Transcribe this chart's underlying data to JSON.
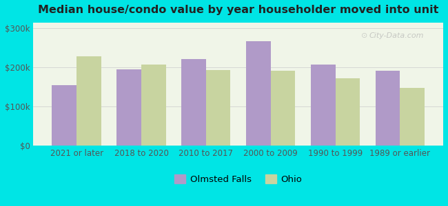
{
  "title": "Median house/condo value by year householder moved into unit",
  "categories": [
    "2021 or later",
    "2018 to 2020",
    "2010 to 2017",
    "2000 to 2009",
    "1990 to 1999",
    "1989 or earlier"
  ],
  "olmsted_falls": [
    155000,
    195000,
    222000,
    268000,
    208000,
    192000
  ],
  "ohio": [
    228000,
    207000,
    193000,
    192000,
    172000,
    148000
  ],
  "olmsted_color": "#b09ac8",
  "ohio_color": "#c8d4a0",
  "background_outer": "#00e5e5",
  "background_inner_top": "#f0f5e8",
  "background_inner_bottom": "#e8f2e0",
  "yticks": [
    0,
    100000,
    200000,
    300000
  ],
  "ylim": [
    0,
    315000
  ],
  "bar_width": 0.38,
  "legend_labels": [
    "Olmsted Falls",
    "Ohio"
  ],
  "watermark": "City-Data.com"
}
